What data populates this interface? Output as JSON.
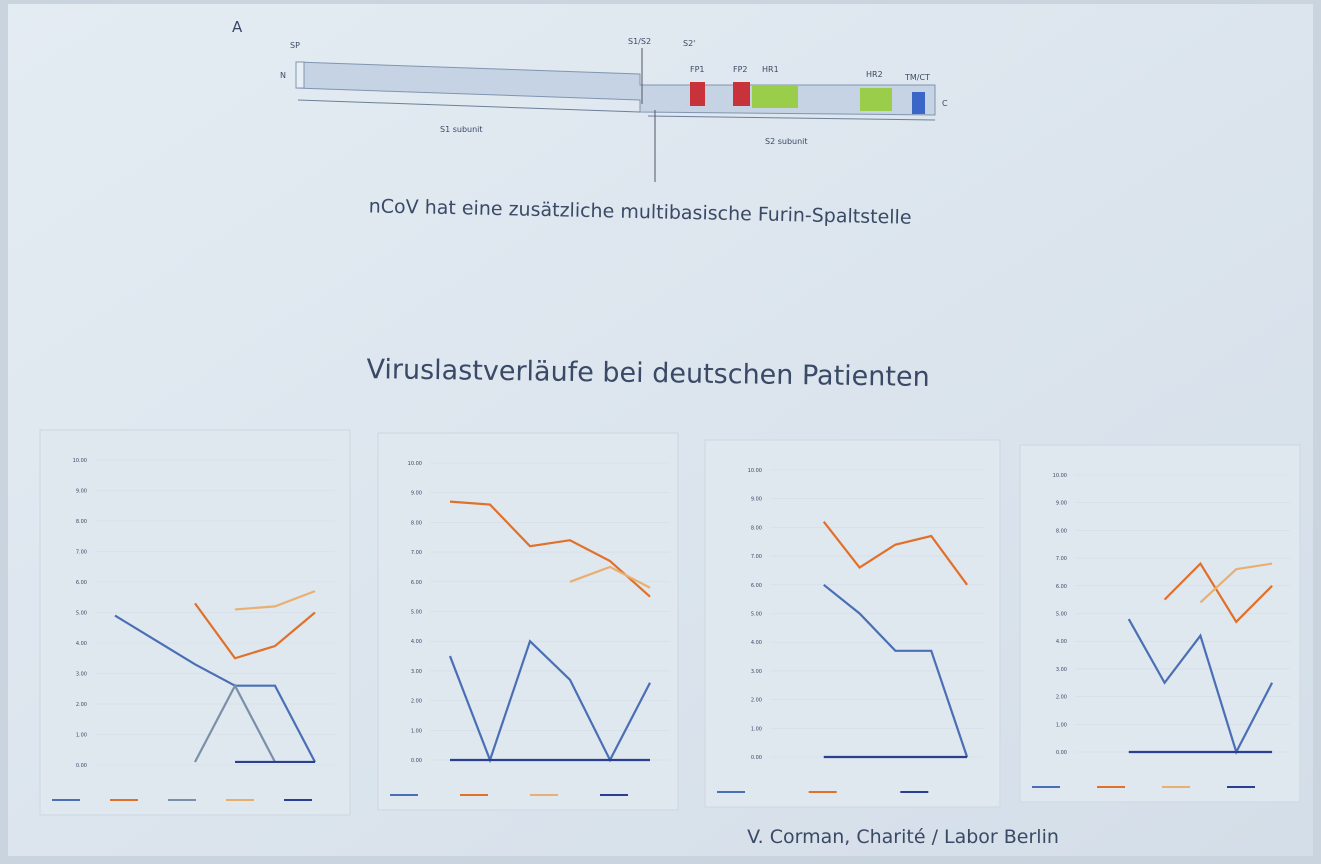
{
  "slide": {
    "title": "Viruslastverläufe bei deutschen Patienten",
    "caption": "nCoV hat eine zusätzliche multibasische Furin-Spaltstelle",
    "credit": "V. Corman, Charité / Labor Berlin",
    "diagram": {
      "panel": "A",
      "n_term": "N",
      "c_term": "C",
      "sp": "SP",
      "s1s2": "S1/S2",
      "s2p": "S2'",
      "fp1": "FP1",
      "fp2": "FP2",
      "hr1": "HR1",
      "hr2": "HR2",
      "tmct": "TM/CT",
      "s1": "S1 subunit",
      "s2": "S2 subunit"
    }
  },
  "chart_data": [
    {
      "type": "line",
      "categories": [
        null,
        null,
        null,
        null,
        null,
        null
      ],
      "ylim": [
        0,
        10
      ],
      "yticks": [
        {
          "value": 0,
          "label": "0.00"
        },
        {
          "value": 1,
          "label": "1.00"
        },
        {
          "value": 2,
          "label": "2.00"
        },
        {
          "value": 3,
          "label": "3.00"
        },
        {
          "value": 4,
          "label": "4.00"
        },
        {
          "value": 5,
          "label": "5.00"
        },
        {
          "value": 6,
          "label": "6.00"
        },
        {
          "value": 7,
          "label": "7.00"
        },
        {
          "value": 8,
          "label": "8.00"
        },
        {
          "value": 9,
          "label": "9.00"
        },
        {
          "value": 10,
          "label": "10.00"
        }
      ],
      "series": [
        {
          "color": "#4a6fb5",
          "values": [
            4.9,
            4.1,
            3.3,
            2.6,
            2.6,
            0.1
          ]
        },
        {
          "color": "#e0702a",
          "values": [
            null,
            null,
            5.3,
            3.5,
            3.9,
            5.0
          ]
        },
        {
          "color": "#7b8fa8",
          "values": [
            null,
            null,
            0.1,
            2.6,
            0.1,
            null
          ]
        },
        {
          "color": "#e8b070",
          "values": [
            null,
            null,
            null,
            5.1,
            5.2,
            5.7
          ]
        },
        {
          "color": "#2a3f8f",
          "values": [
            null,
            null,
            null,
            0.1,
            0.1,
            0.1
          ]
        }
      ]
    },
    {
      "type": "line",
      "categories": [
        null,
        null,
        null,
        null,
        null,
        null
      ],
      "ylim": [
        0,
        10
      ],
      "yticks": [
        {
          "value": 0,
          "label": "0.00"
        },
        {
          "value": 1,
          "label": "1.00"
        },
        {
          "value": 2,
          "label": "2.00"
        },
        {
          "value": 3,
          "label": "3.00"
        },
        {
          "value": 4,
          "label": "4.00"
        },
        {
          "value": 5,
          "label": "5.00"
        },
        {
          "value": 6,
          "label": "6.00"
        },
        {
          "value": 7,
          "label": "7.00"
        },
        {
          "value": 8,
          "label": "8.00"
        },
        {
          "value": 9,
          "label": "9.00"
        },
        {
          "value": 10,
          "label": "10.00"
        }
      ],
      "series": [
        {
          "color": "#4a6fb5",
          "values": [
            3.5,
            0,
            4.0,
            2.7,
            0,
            2.6
          ]
        },
        {
          "color": "#e0702a",
          "values": [
            8.7,
            8.6,
            7.2,
            7.4,
            6.7,
            5.5
          ]
        },
        {
          "color": "#e8b070",
          "values": [
            null,
            null,
            null,
            6.0,
            6.5,
            5.8
          ]
        },
        {
          "color": "#2a3f8f",
          "values": [
            0,
            0,
            0,
            0,
            0,
            0
          ]
        }
      ]
    },
    {
      "type": "line",
      "categories": [
        null,
        null,
        null,
        null,
        null,
        null
      ],
      "ylim": [
        0,
        10
      ],
      "yticks": [
        {
          "value": 0,
          "label": "0.00"
        },
        {
          "value": 1,
          "label": "1.00"
        },
        {
          "value": 2,
          "label": "2.00"
        },
        {
          "value": 3,
          "label": "3.00"
        },
        {
          "value": 4,
          "label": "4.00"
        },
        {
          "value": 5,
          "label": "5.00"
        },
        {
          "value": 6,
          "label": "6.00"
        },
        {
          "value": 7,
          "label": "7.00"
        },
        {
          "value": 8,
          "label": "8.00"
        },
        {
          "value": 9,
          "label": "9.00"
        },
        {
          "value": 10,
          "label": "10.00"
        }
      ],
      "series": [
        {
          "color": "#4a6fb5",
          "values": [
            null,
            6.0,
            5.0,
            3.7,
            3.7,
            0
          ]
        },
        {
          "color": "#e0702a",
          "values": [
            null,
            8.2,
            6.6,
            7.4,
            7.7,
            6.0
          ]
        },
        {
          "color": "#2a3f8f",
          "values": [
            null,
            0,
            0,
            0,
            0,
            0
          ]
        }
      ]
    },
    {
      "type": "line",
      "categories": [
        null,
        null,
        null,
        null,
        null,
        null
      ],
      "ylim": [
        0,
        10
      ],
      "yticks": [
        {
          "value": 0,
          "label": "0.00"
        },
        {
          "value": 1,
          "label": "1.00"
        },
        {
          "value": 2,
          "label": "2.00"
        },
        {
          "value": 3,
          "label": "3.00"
        },
        {
          "value": 4,
          "label": "4.00"
        },
        {
          "value": 5,
          "label": "5.00"
        },
        {
          "value": 6,
          "label": "6.00"
        },
        {
          "value": 7,
          "label": "7.00"
        },
        {
          "value": 8,
          "label": "8.00"
        },
        {
          "value": 9,
          "label": "9.00"
        },
        {
          "value": 10,
          "label": "10.00"
        }
      ],
      "series": [
        {
          "color": "#4a6fb5",
          "values": [
            null,
            4.8,
            2.5,
            4.2,
            0,
            2.5
          ]
        },
        {
          "color": "#e0702a",
          "values": [
            null,
            null,
            5.5,
            6.8,
            4.7,
            6.0
          ]
        },
        {
          "color": "#e8b070",
          "values": [
            null,
            null,
            null,
            5.4,
            6.6,
            6.8
          ]
        },
        {
          "color": "#2a3f8f",
          "values": [
            null,
            0,
            0,
            0,
            0,
            0
          ]
        }
      ]
    }
  ]
}
